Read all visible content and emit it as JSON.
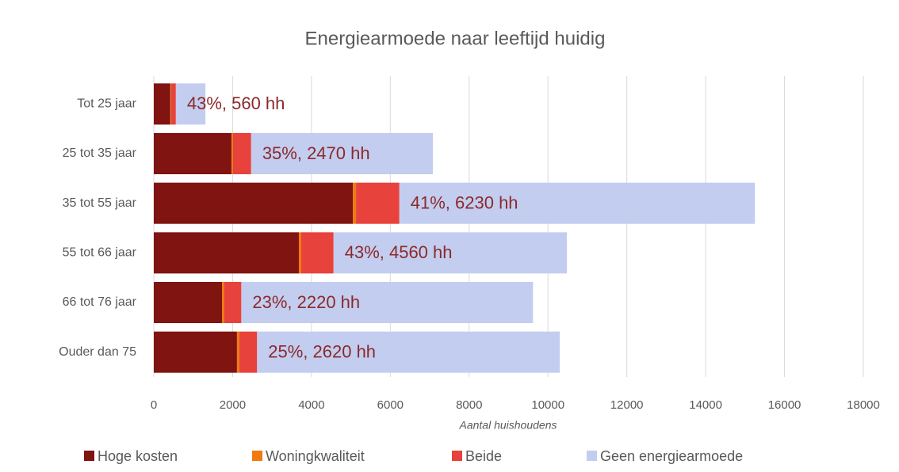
{
  "chart_data": {
    "type": "bar",
    "orientation": "horizontal",
    "stacked": true,
    "title": "Energiearmoede naar leeftijd huidig",
    "x_label": "Aantal huishoudens",
    "categories": [
      "Tot 25 jaar",
      "25 tot 35 jaar",
      "35 tot 55 jaar",
      "55 tot 66 jaar",
      "66 tot 76 jaar",
      "Ouder dan 75"
    ],
    "series": [
      {
        "name": "Hoge kosten",
        "color": "#7f1411",
        "values": [
          420,
          1970,
          5050,
          3680,
          1730,
          2110
        ]
      },
      {
        "name": "Woningkwaliteit",
        "color": "#f07a10",
        "values": [
          20,
          40,
          80,
          60,
          60,
          60
        ]
      },
      {
        "name": "Beide",
        "color": "#e8423c",
        "values": [
          120,
          460,
          1100,
          820,
          430,
          450
        ]
      },
      {
        "name": "Geen energiearmoede",
        "color": "#c3cdf0",
        "values": [
          750,
          4610,
          9020,
          5920,
          7400,
          7680
        ]
      }
    ],
    "annotations": [
      "43%, 560 hh",
      "35%, 2470 hh",
      "41%, 6230 hh",
      "43%, 4560 hh",
      "23%, 2220 hh",
      "25%, 2620 hh"
    ],
    "xlim": [
      0,
      18000
    ],
    "xticks": [
      0,
      2000,
      4000,
      6000,
      8000,
      10000,
      12000,
      14000,
      16000,
      18000
    ],
    "grid": true,
    "legend": "bottom"
  }
}
